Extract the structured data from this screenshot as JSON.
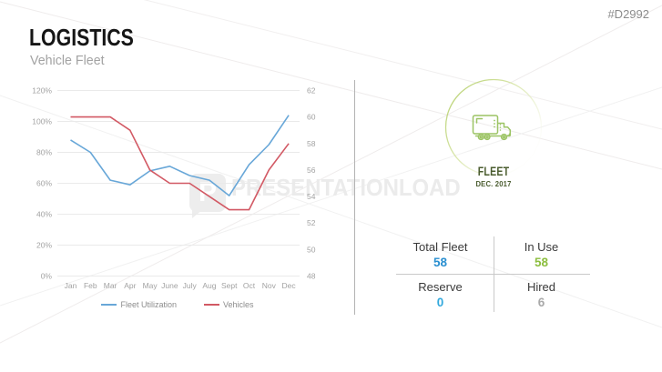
{
  "slide": {
    "title": "LOGISTICS",
    "subtitle": "Vehicle Fleet",
    "code": "#D2992"
  },
  "watermark": {
    "logo_letter": "P",
    "text": "PRESENTATIONLOAD"
  },
  "chart_data": {
    "type": "line",
    "title": "",
    "categories": [
      "Jan",
      "Feb",
      "Mar",
      "Apr",
      "May",
      "June",
      "July",
      "Aug",
      "Sept",
      "Oct",
      "Nov",
      "Dec"
    ],
    "series": [
      {
        "name": "Fleet Utilization",
        "axis": "left",
        "color": "#68a7d8",
        "values": [
          88,
          80,
          62,
          59,
          68,
          71,
          65,
          62,
          52,
          72,
          85,
          104
        ]
      },
      {
        "name": "Vehicles",
        "axis": "right",
        "color": "#d25964",
        "values": [
          60,
          60,
          60,
          59,
          56,
          55,
          55,
          54,
          53,
          53,
          56,
          58
        ]
      }
    ],
    "left_axis": {
      "min": 0,
      "max": 120,
      "tick_labels": [
        "0%",
        "20%",
        "40%",
        "60%",
        "80%",
        "100%",
        "120%"
      ],
      "tick_values": [
        0,
        20,
        40,
        60,
        80,
        100,
        120
      ]
    },
    "right_axis": {
      "min": 48,
      "max": 62,
      "tick_labels": [
        "48",
        "50",
        "52",
        "54",
        "56",
        "58",
        "60",
        "62"
      ],
      "tick_values": [
        48,
        50,
        52,
        54,
        56,
        58,
        60,
        62
      ]
    },
    "grid": true,
    "legend_position": "bottom",
    "colors": {
      "grid": "#eaeaea",
      "axis_text": "#a2a2a2",
      "legend_text": "#8c8c8c"
    }
  },
  "fleet_badge": {
    "label": "FLEET",
    "date": "DEC. 2017",
    "icon": "truck-icon",
    "icon_color": "#9cc464",
    "ring_color": "#a2c348",
    "label_color": "#4a5c2f"
  },
  "stats": {
    "cells": [
      {
        "label": "Total Fleet",
        "value": "58",
        "color": "#2a8fd0"
      },
      {
        "label": "In Use",
        "value": "58",
        "color": "#8cbe3f"
      },
      {
        "label": "Reserve",
        "value": "0",
        "color": "#33a9dd"
      },
      {
        "label": "Hired",
        "value": "6",
        "color": "#a9a9a9"
      }
    ]
  }
}
